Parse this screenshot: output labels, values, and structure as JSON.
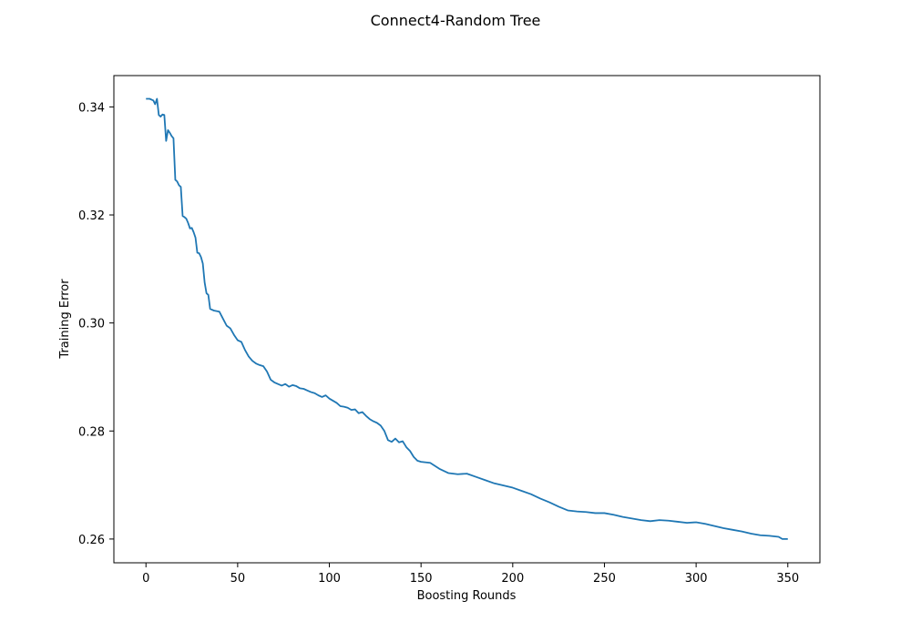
{
  "chart_data": {
    "type": "line",
    "title": "Connect4-Random Tree",
    "xlabel": "Boosting Rounds",
    "ylabel": "Training Error",
    "xlim": [
      -17.5,
      367.5
    ],
    "ylim": [
      0.2556,
      0.3458
    ],
    "xticks": [
      0,
      50,
      100,
      150,
      200,
      250,
      300,
      350
    ],
    "yticks": [
      0.26,
      0.28,
      0.3,
      0.32,
      0.34
    ],
    "ytick_labels": [
      "0.26",
      "0.28",
      "0.30",
      "0.32",
      "0.34"
    ],
    "grid": false,
    "line_color": "#1f77b4",
    "series": [
      {
        "x": [
          0,
          2,
          4,
          5,
          6,
          7,
          8,
          9,
          10,
          11,
          12,
          13,
          14,
          15,
          16,
          17,
          18,
          19,
          20,
          21,
          22,
          23,
          24,
          25,
          26,
          27,
          28,
          29,
          30,
          31,
          32,
          33,
          34,
          35,
          37,
          40,
          42,
          44,
          46,
          48,
          50,
          52,
          54,
          56,
          58,
          60,
          62,
          64,
          66,
          68,
          70,
          72,
          74,
          76,
          78,
          80,
          82,
          84,
          86,
          88,
          90,
          92,
          94,
          96,
          98,
          100,
          102,
          104,
          106,
          108,
          110,
          112,
          114,
          116,
          118,
          120,
          122,
          124,
          126,
          128,
          130,
          132,
          134,
          136,
          138,
          140,
          142,
          144,
          146,
          148,
          150,
          155,
          160,
          165,
          170,
          175,
          180,
          185,
          190,
          195,
          200,
          205,
          210,
          215,
          220,
          225,
          230,
          235,
          240,
          245,
          250,
          255,
          260,
          265,
          270,
          275,
          280,
          285,
          290,
          295,
          300,
          305,
          310,
          315,
          320,
          325,
          330,
          335,
          340,
          345,
          347,
          350
        ],
        "y": [
          0.3415,
          0.3415,
          0.3412,
          0.3405,
          0.3415,
          0.3385,
          0.3382,
          0.3386,
          0.3385,
          0.3337,
          0.3357,
          0.3352,
          0.3346,
          0.3342,
          0.3265,
          0.3262,
          0.3255,
          0.3252,
          0.3198,
          0.3196,
          0.3193,
          0.3185,
          0.3175,
          0.3176,
          0.3168,
          0.3158,
          0.313,
          0.3129,
          0.3122,
          0.311,
          0.3075,
          0.3055,
          0.3052,
          0.3026,
          0.3023,
          0.3021,
          0.3008,
          0.2995,
          0.299,
          0.2978,
          0.2968,
          0.2965,
          0.295,
          0.2938,
          0.293,
          0.2925,
          0.2922,
          0.292,
          0.291,
          0.2895,
          0.289,
          0.2887,
          0.2884,
          0.2887,
          0.2882,
          0.2885,
          0.2883,
          0.2879,
          0.2878,
          0.2875,
          0.2872,
          0.287,
          0.2866,
          0.2863,
          0.2866,
          0.286,
          0.2856,
          0.2852,
          0.2846,
          0.2845,
          0.2843,
          0.2839,
          0.284,
          0.2833,
          0.2835,
          0.2828,
          0.2822,
          0.2818,
          0.2815,
          0.281,
          0.28,
          0.2783,
          0.278,
          0.2786,
          0.2779,
          0.2781,
          0.277,
          0.2763,
          0.2752,
          0.2745,
          0.2743,
          0.2741,
          0.273,
          0.2722,
          0.272,
          0.2721,
          0.2715,
          0.2709,
          0.2703,
          0.2699,
          0.2695,
          0.2689,
          0.2683,
          0.2675,
          0.2668,
          0.266,
          0.2653,
          0.2651,
          0.265,
          0.2648,
          0.2648,
          0.2645,
          0.2641,
          0.2638,
          0.2635,
          0.2633,
          0.2635,
          0.2634,
          0.2632,
          0.263,
          0.2631,
          0.2628,
          0.2624,
          0.262,
          0.2617,
          0.2614,
          0.261,
          0.2607,
          0.2606,
          0.2604,
          0.26,
          0.26
        ]
      }
    ]
  }
}
